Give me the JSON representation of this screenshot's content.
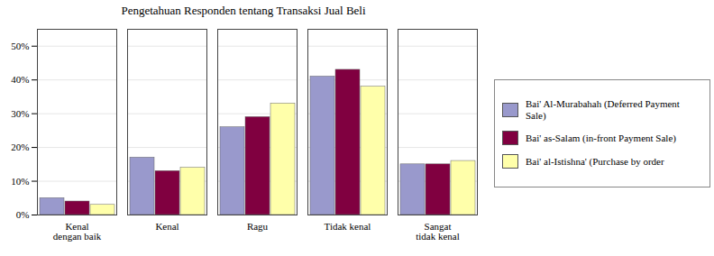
{
  "chart_data": {
    "type": "bar",
    "title": "Pengetahuan Responden tentang Transaksi Jual Beli",
    "categories": [
      "Kenal\ndengan baik",
      "Kenal",
      "Ragu",
      "Tidak kenal",
      "Sangat\ntidak kenal"
    ],
    "series": [
      {
        "name": "Bai' Al-Murabahah (Deferred Payment\nSale)",
        "color": "#9999CC",
        "values": [
          5,
          17,
          26,
          41,
          15
        ]
      },
      {
        "name": "Bai' as-Salam (in-front Payment Sale)",
        "color": "#800040",
        "values": [
          4,
          13,
          29,
          43,
          15
        ]
      },
      {
        "name": "Bai' al-Istishna' (Purchase by order",
        "color": "#FFFFAA",
        "values": [
          3,
          14,
          33,
          38,
          16
        ]
      }
    ],
    "ylim": [
      0,
      55
    ],
    "yticks": [
      {
        "value": 0,
        "label": "0%"
      },
      {
        "value": 10,
        "label": "10%"
      },
      {
        "value": 20,
        "label": "20%"
      },
      {
        "value": 30,
        "label": "30%"
      },
      {
        "value": 40,
        "label": "40%"
      },
      {
        "value": 50,
        "label": "50%"
      }
    ],
    "grid": true,
    "legend": "right"
  }
}
